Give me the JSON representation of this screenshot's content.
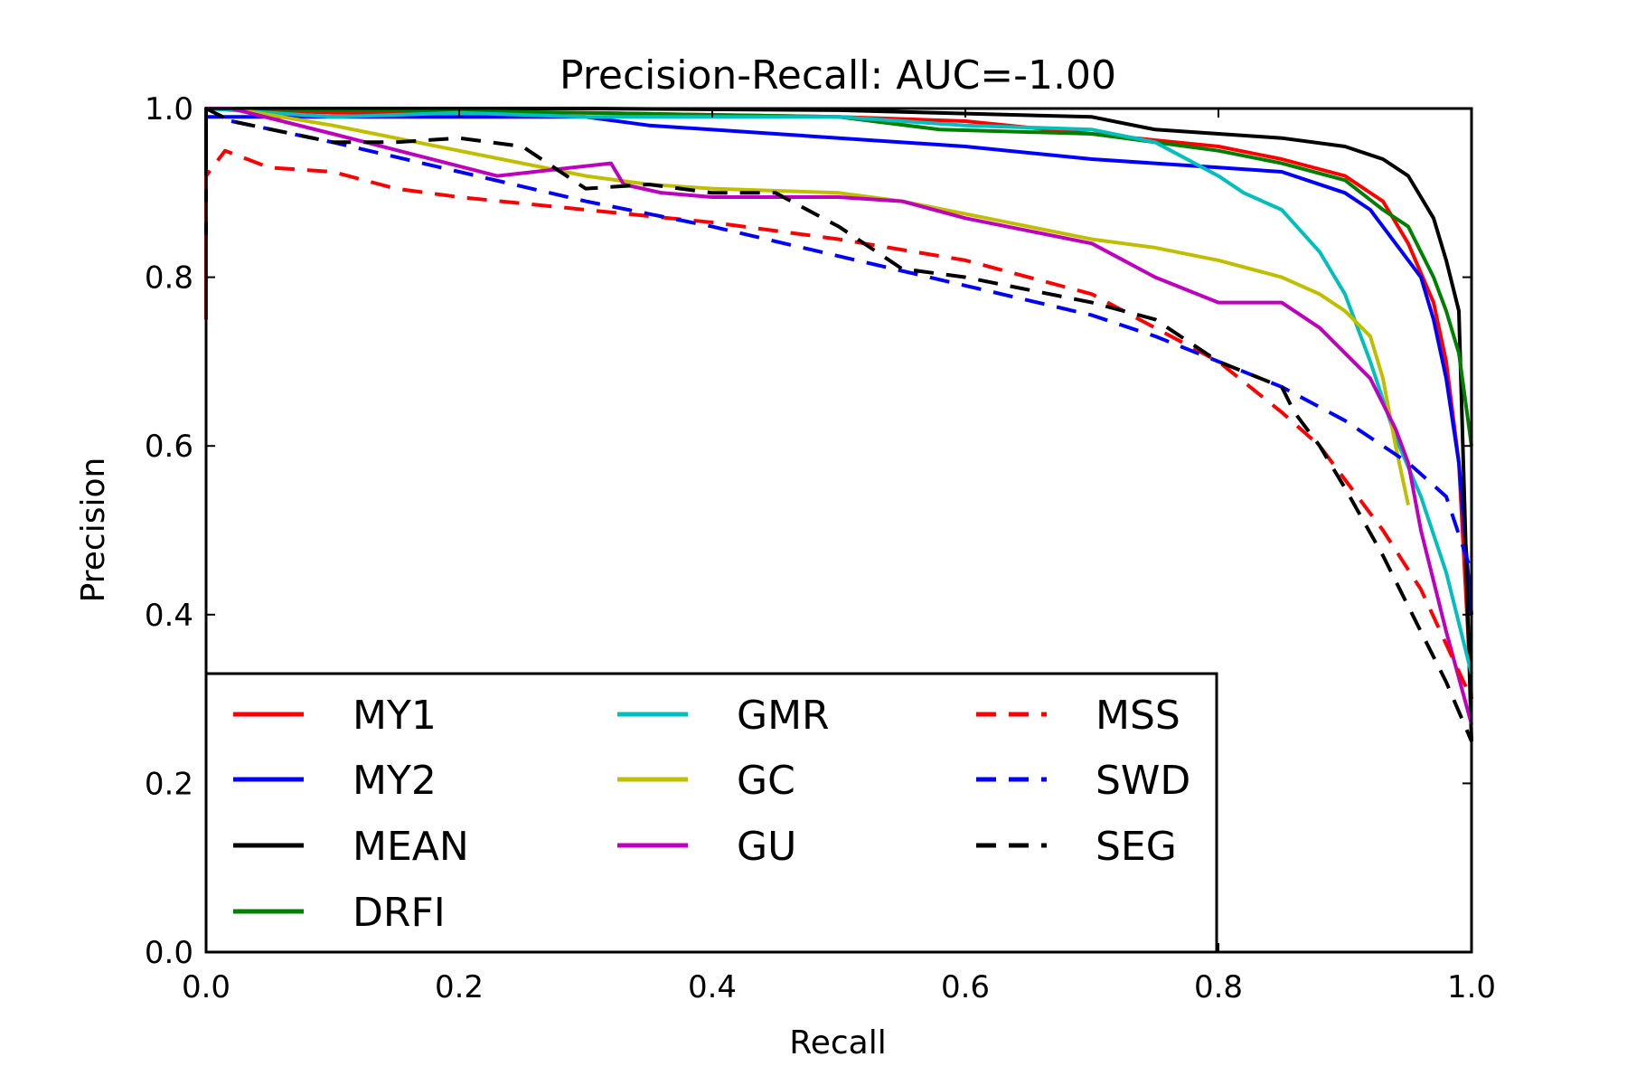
{
  "chart_data": {
    "type": "line",
    "title": "Precision-Recall: AUC=-1.00",
    "xlabel": "Recall",
    "ylabel": "Precision",
    "xlim": [
      0,
      1
    ],
    "ylim": [
      0,
      1
    ],
    "xticks": [
      "0.0",
      "0.2",
      "0.4",
      "0.6",
      "0.8",
      "1.0"
    ],
    "yticks": [
      "0.0",
      "0.2",
      "0.4",
      "0.6",
      "0.8",
      "1.0"
    ],
    "grid": false,
    "legend_position": "lower-left",
    "series": [
      {
        "name": "MY1",
        "color": "#ff0000",
        "dash": "solid",
        "x": [
          0.0,
          0.0,
          0.02,
          0.1,
          0.3,
          0.5,
          0.6,
          0.7,
          0.8,
          0.85,
          0.9,
          0.93,
          0.95,
          0.97,
          0.98,
          0.99,
          1.0
        ],
        "y": [
          0.75,
          1.0,
          1.0,
          0.995,
          0.995,
          0.99,
          0.985,
          0.97,
          0.955,
          0.94,
          0.92,
          0.89,
          0.84,
          0.77,
          0.7,
          0.58,
          0.3
        ]
      },
      {
        "name": "MY2",
        "color": "#0000ff",
        "dash": "solid",
        "x": [
          0.0,
          0.01,
          0.1,
          0.3,
          0.35,
          0.5,
          0.6,
          0.7,
          0.8,
          0.85,
          0.9,
          0.92,
          0.94,
          0.96,
          0.97,
          0.98,
          0.99,
          1.0
        ],
        "y": [
          0.99,
          0.99,
          0.99,
          0.99,
          0.98,
          0.965,
          0.955,
          0.94,
          0.93,
          0.925,
          0.9,
          0.88,
          0.84,
          0.8,
          0.75,
          0.68,
          0.58,
          0.4
        ]
      },
      {
        "name": "MEAN",
        "color": "#000000",
        "dash": "solid",
        "x": [
          0.0,
          0.0,
          0.02,
          0.3,
          0.5,
          0.7,
          0.75,
          0.8,
          0.85,
          0.9,
          0.93,
          0.95,
          0.97,
          0.98,
          0.99,
          1.0
        ],
        "y": [
          0.85,
          1.0,
          1.0,
          1.0,
          0.998,
          0.99,
          0.975,
          0.97,
          0.965,
          0.955,
          0.94,
          0.92,
          0.87,
          0.82,
          0.76,
          0.25
        ]
      },
      {
        "name": "DRFI",
        "color": "#008000",
        "dash": "solid",
        "x": [
          0.0,
          0.02,
          0.3,
          0.5,
          0.58,
          0.7,
          0.8,
          0.85,
          0.9,
          0.93,
          0.95,
          0.97,
          0.98,
          0.99,
          1.0
        ],
        "y": [
          1.0,
          1.0,
          0.995,
          0.99,
          0.975,
          0.97,
          0.95,
          0.935,
          0.915,
          0.88,
          0.86,
          0.8,
          0.76,
          0.71,
          0.6
        ]
      },
      {
        "name": "GMR",
        "color": "#00bfbf",
        "dash": "solid",
        "x": [
          0.0,
          0.1,
          0.2,
          0.3,
          0.5,
          0.6,
          0.7,
          0.75,
          0.8,
          0.82,
          0.85,
          0.88,
          0.9,
          0.92,
          0.94,
          0.96,
          0.98,
          1.0
        ],
        "y": [
          1.0,
          0.99,
          0.995,
          0.99,
          0.99,
          0.98,
          0.975,
          0.96,
          0.92,
          0.9,
          0.88,
          0.83,
          0.78,
          0.7,
          0.61,
          0.54,
          0.45,
          0.33
        ]
      },
      {
        "name": "GC",
        "color": "#bfbf00",
        "dash": "solid",
        "x": [
          0.0,
          0.02,
          0.1,
          0.2,
          0.3,
          0.35,
          0.4,
          0.5,
          0.55,
          0.6,
          0.65,
          0.7,
          0.75,
          0.8,
          0.85,
          0.88,
          0.9,
          0.92,
          0.93,
          0.94,
          0.95
        ],
        "y": [
          1.0,
          1.0,
          0.98,
          0.95,
          0.92,
          0.91,
          0.905,
          0.9,
          0.89,
          0.875,
          0.86,
          0.845,
          0.835,
          0.82,
          0.8,
          0.78,
          0.76,
          0.73,
          0.68,
          0.6,
          0.53
        ]
      },
      {
        "name": "GU",
        "color": "#bf00bf",
        "dash": "solid",
        "x": [
          0.0,
          0.02,
          0.1,
          0.23,
          0.32,
          0.33,
          0.36,
          0.4,
          0.5,
          0.55,
          0.6,
          0.7,
          0.75,
          0.8,
          0.85,
          0.88,
          0.9,
          0.92,
          0.94,
          0.95,
          0.96,
          0.98,
          1.0
        ],
        "y": [
          1.0,
          1.0,
          0.97,
          0.92,
          0.935,
          0.91,
          0.9,
          0.895,
          0.895,
          0.89,
          0.87,
          0.84,
          0.8,
          0.77,
          0.77,
          0.74,
          0.71,
          0.68,
          0.62,
          0.58,
          0.5,
          0.38,
          0.27
        ]
      },
      {
        "name": "MSS",
        "color": "#ff0000",
        "dash": "dashed",
        "x": [
          0.0,
          0.0,
          0.015,
          0.05,
          0.1,
          0.15,
          0.2,
          0.3,
          0.4,
          0.5,
          0.6,
          0.7,
          0.75,
          0.8,
          0.85,
          0.88,
          0.9,
          0.93,
          0.96,
          1.0
        ],
        "y": [
          0.75,
          0.92,
          0.95,
          0.93,
          0.925,
          0.905,
          0.895,
          0.88,
          0.865,
          0.845,
          0.82,
          0.78,
          0.74,
          0.7,
          0.64,
          0.6,
          0.56,
          0.5,
          0.43,
          0.3
        ]
      },
      {
        "name": "SWD",
        "color": "#0000ff",
        "dash": "dashed",
        "x": [
          0.02,
          0.1,
          0.2,
          0.3,
          0.4,
          0.5,
          0.6,
          0.7,
          0.75,
          0.8,
          0.85,
          0.9,
          0.95,
          0.98,
          1.0
        ],
        "y": [
          0.985,
          0.96,
          0.925,
          0.89,
          0.86,
          0.825,
          0.79,
          0.755,
          0.73,
          0.7,
          0.67,
          0.63,
          0.58,
          0.54,
          0.45
        ]
      },
      {
        "name": "SEG",
        "color": "#000000",
        "dash": "dashed",
        "x": [
          0.0,
          0.02,
          0.1,
          0.15,
          0.2,
          0.25,
          0.3,
          0.35,
          0.4,
          0.45,
          0.5,
          0.55,
          0.6,
          0.7,
          0.75,
          0.8,
          0.85,
          0.86,
          0.88,
          0.9,
          0.93,
          0.96,
          0.98,
          1.0
        ],
        "y": [
          1.0,
          0.985,
          0.96,
          0.96,
          0.965,
          0.955,
          0.905,
          0.91,
          0.9,
          0.9,
          0.86,
          0.81,
          0.8,
          0.77,
          0.75,
          0.7,
          0.67,
          0.64,
          0.6,
          0.55,
          0.47,
          0.38,
          0.32,
          0.25
        ]
      }
    ]
  }
}
